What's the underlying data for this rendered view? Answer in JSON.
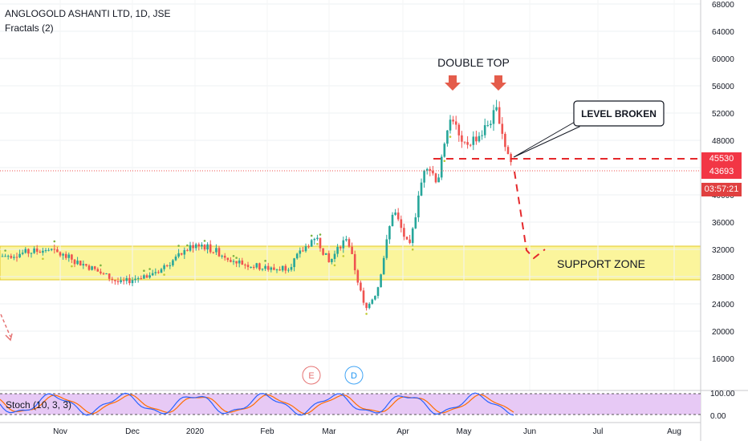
{
  "header": {
    "symbol": "ANGLOGOLD ASHANTI LTD, 1D, JSE",
    "indicator": "Fractals (2)"
  },
  "badges": {
    "level": "45530",
    "last_price": "43693",
    "countdown": "03:57:21",
    "level_color": "#f23645",
    "price_color": "#f23645",
    "countdown_color": "#e04040"
  },
  "annotations": {
    "double_top": "DOUBLE TOP",
    "level_broken": "LEVEL BROKEN",
    "support_zone": "SUPPORT ZONE",
    "earnings_marker": "E",
    "dividend_marker": "D"
  },
  "stoch": {
    "label": "Stoch (10, 3, 3)",
    "ticks": [
      "100.00",
      "0.00"
    ],
    "k_color": "#2962ff",
    "d_color": "#ff6d00"
  },
  "chart_data": {
    "type": "candlestick",
    "y_axis_ticks": [
      16000,
      20000,
      24000,
      28000,
      32000,
      36000,
      40000,
      44000,
      48000,
      52000,
      56000,
      60000,
      64000,
      68000
    ],
    "ylim": [
      12000,
      69000
    ],
    "x_axis_labels": [
      "Nov",
      "Dec",
      "2020",
      "Feb",
      "Mar",
      "Apr",
      "May",
      "Jun",
      "Jul",
      "Aug"
    ],
    "support_zone": [
      28000,
      33000
    ],
    "broken_level": 45530,
    "last_price": 43693,
    "double_top_peaks": [
      52600,
      53600
    ],
    "projection_target": 31000,
    "series": [
      {
        "x": "2019-10-07",
        "y": 31000
      },
      {
        "x": "2019-10-14",
        "y": 32500
      },
      {
        "x": "2019-10-21",
        "y": 30500
      },
      {
        "x": "2019-10-28",
        "y": 32000
      },
      {
        "x": "2019-11-04",
        "y": 33000
      },
      {
        "x": "2019-11-11",
        "y": 31000
      },
      {
        "x": "2019-11-18",
        "y": 30000
      },
      {
        "x": "2019-11-25",
        "y": 29000
      },
      {
        "x": "2019-12-02",
        "y": 28500
      },
      {
        "x": "2019-12-09",
        "y": 27500
      },
      {
        "x": "2019-12-16",
        "y": 27000
      },
      {
        "x": "2019-12-23",
        "y": 28500
      },
      {
        "x": "2020-01-06",
        "y": 30000
      },
      {
        "x": "2020-01-13",
        "y": 33500
      },
      {
        "x": "2020-01-20",
        "y": 31000
      },
      {
        "x": "2020-01-27",
        "y": 30500
      },
      {
        "x": "2020-02-03",
        "y": 30000
      },
      {
        "x": "2020-02-10",
        "y": 30500
      },
      {
        "x": "2020-02-17",
        "y": 29500
      },
      {
        "x": "2020-02-24",
        "y": 29000
      },
      {
        "x": "2020-03-02",
        "y": 35000
      },
      {
        "x": "2020-03-09",
        "y": 32000
      },
      {
        "x": "2020-03-16",
        "y": 25000
      },
      {
        "x": "2020-03-23",
        "y": 26000
      },
      {
        "x": "2020-03-30",
        "y": 34000
      },
      {
        "x": "2020-04-06",
        "y": 42000
      },
      {
        "x": "2020-04-13",
        "y": 46000
      },
      {
        "x": "2020-04-20",
        "y": 51000
      },
      {
        "x": "2020-04-27",
        "y": 48000
      },
      {
        "x": "2020-05-04",
        "y": 47000
      },
      {
        "x": "2020-05-11",
        "y": 50000
      },
      {
        "x": "2020-05-18",
        "y": 52500
      },
      {
        "x": "2020-05-25",
        "y": 43700
      }
    ]
  }
}
